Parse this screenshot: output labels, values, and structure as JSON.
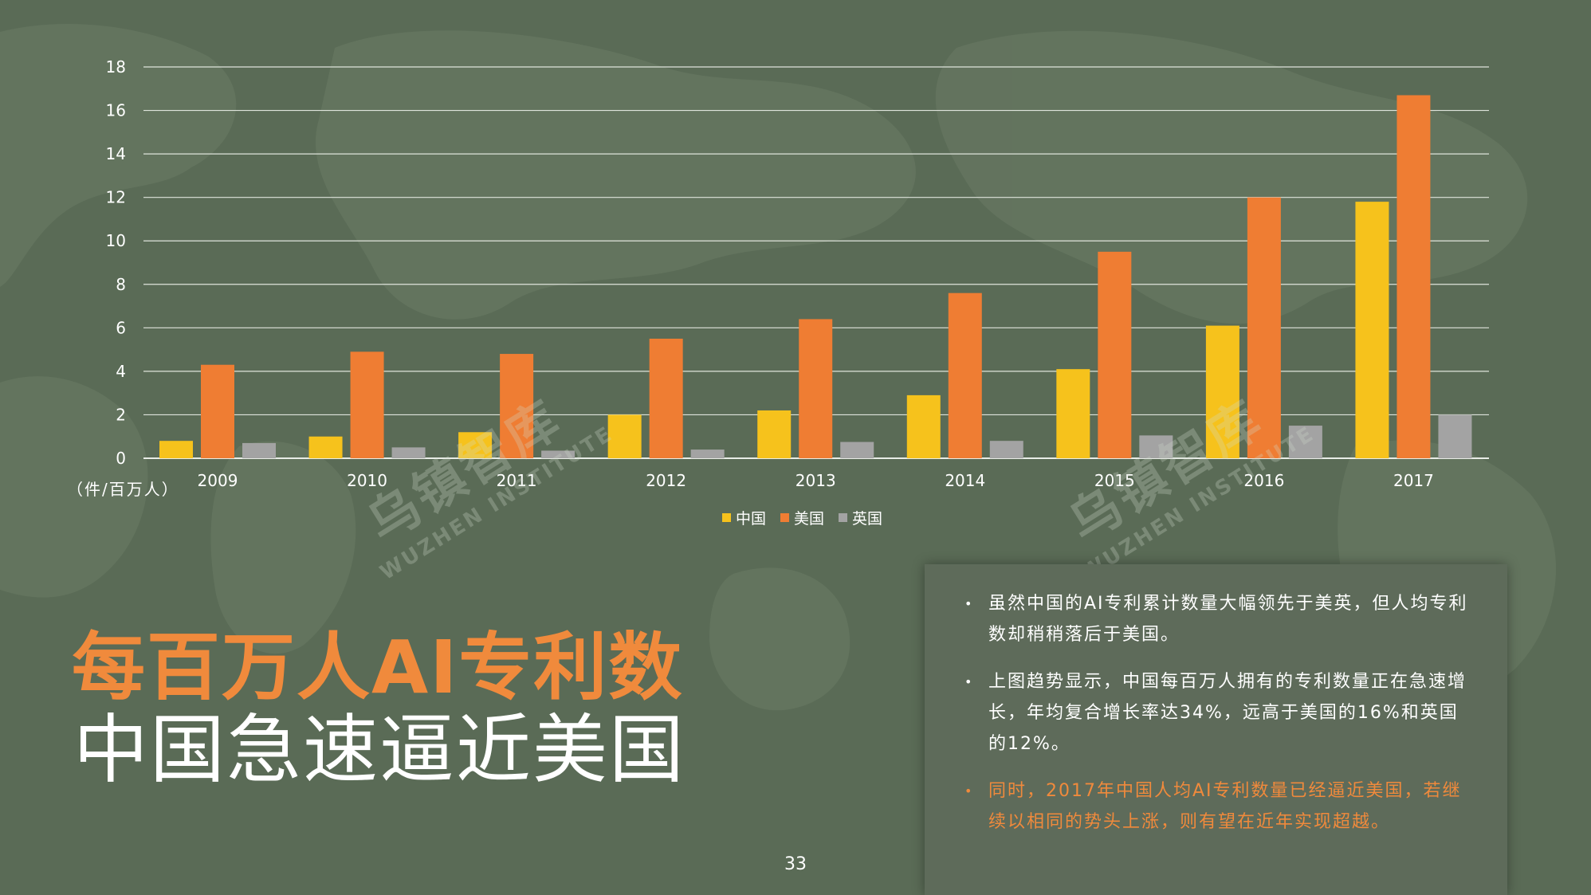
{
  "colors": {
    "background": "#5a6b56",
    "accent": "#f08a3c",
    "china": "#f6c21c",
    "usa": "#ef7d33",
    "uk": "#a3a3a3"
  },
  "chart_data": {
    "type": "bar",
    "categories": [
      "2009",
      "2010",
      "2011",
      "2012",
      "2013",
      "2014",
      "2015",
      "2016",
      "2017"
    ],
    "series": [
      {
        "name": "中国",
        "values": [
          0.8,
          1.0,
          1.2,
          2.0,
          2.2,
          2.9,
          4.1,
          6.1,
          11.8
        ]
      },
      {
        "name": "美国",
        "values": [
          4.3,
          4.9,
          4.8,
          5.5,
          6.4,
          7.6,
          9.5,
          12.0,
          16.7
        ]
      },
      {
        "name": "英国",
        "values": [
          0.7,
          0.5,
          0.35,
          0.4,
          0.75,
          0.8,
          1.05,
          1.5,
          2.0
        ]
      }
    ],
    "ylim": [
      0,
      18
    ],
    "yticks": [
      "0",
      "2",
      "4",
      "6",
      "8",
      "10",
      "12",
      "14",
      "16",
      "18"
    ],
    "unit_label": "（件/百万人）",
    "grid": true,
    "legend_position": "bottom"
  },
  "watermark": {
    "text": "乌镇智库",
    "sub": "WUZHEN INSTITUTE"
  },
  "title": {
    "line1": "每百万人AI专利数",
    "line2": "中国急速逼近美国"
  },
  "bullets": [
    {
      "marker": "•",
      "text": "虽然中国的AI专利累计数量大幅领先于美英，但人均专利数却稍稍落后于美国。"
    },
    {
      "marker": "•",
      "text": "上图趋势显示，中国每百万人拥有的专利数量正在急速增长，年均复合增长率达34%，远高于美国的16%和英国的12%。"
    },
    {
      "marker": "•",
      "text": "同时，2017年中国人均AI专利数量已经逼近美国，若继续以相同的势头上涨，则有望在近年实现超越。"
    }
  ],
  "page_number": "33"
}
